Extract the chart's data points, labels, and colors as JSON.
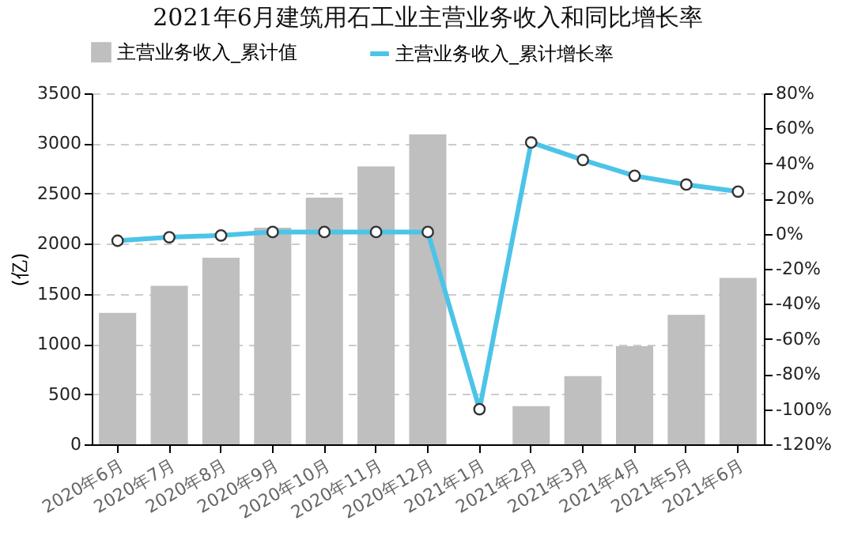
{
  "chart_data": {
    "type": "bar",
    "title": "2021年6月建筑用石工业主营业务收入和同比增长率",
    "ylabel": "(亿)",
    "categories": [
      "2020年6月",
      "2020年7月",
      "2020年8月",
      "2020年9月",
      "2020年10月",
      "2020年11月",
      "2020年12月",
      "2021年1月",
      "2021年2月",
      "2021年3月",
      "2021年4月",
      "2021年5月",
      "2021年6月"
    ],
    "series": [
      {
        "name": "主营业务收入_累计值",
        "color": "#bfbfbf",
        "values": [
          1310,
          1580,
          1860,
          2160,
          2460,
          2770,
          3090,
          null,
          380,
          680,
          980,
          1290,
          1660
        ]
      },
      {
        "name": "主营业务收入_累计增长率",
        "type": "line",
        "axis": "y2",
        "color": "#4cc4e8",
        "values": [
          -4,
          -2,
          -1,
          1,
          1,
          1,
          1,
          -100,
          52,
          42,
          33,
          28,
          24
        ]
      }
    ],
    "ylim": [
      0,
      3500
    ],
    "yticks": [
      0,
      500,
      1000,
      1500,
      2000,
      2500,
      3000,
      3500
    ],
    "y2lim": [
      -120,
      80
    ],
    "y2ticks": [
      {
        "value": -120,
        "label": "-120%"
      },
      {
        "value": -100,
        "label": "-100%"
      },
      {
        "value": -80,
        "label": "-80%"
      },
      {
        "value": -60,
        "label": "-60%"
      },
      {
        "value": -40,
        "label": "-40%"
      },
      {
        "value": -20,
        "label": "-20%"
      },
      {
        "value": 0,
        "label": "0%"
      },
      {
        "value": 20,
        "label": "20%"
      },
      {
        "value": 40,
        "label": "40%"
      },
      {
        "value": 60,
        "label": "60%"
      },
      {
        "value": 80,
        "label": "80%"
      }
    ],
    "grid": "y",
    "legend": "top",
    "marker": "circle",
    "line_style": "solid"
  }
}
